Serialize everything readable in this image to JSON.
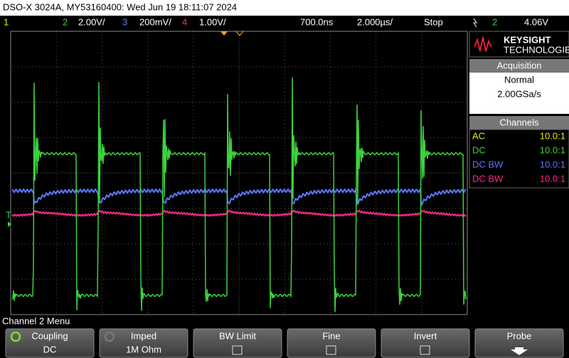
{
  "header": {
    "title": "DSO-X 3024A, MY53160400: Wed Jun 19 18:11:07 2024"
  },
  "status": {
    "ch1": "1",
    "ch2": "2",
    "ch2_scale": "2.00V/",
    "ch3": "3",
    "ch3_scale": "200mV/",
    "ch4": "4",
    "ch4_scale": "1.00V/",
    "delay": "700.0ns",
    "timebase": "2.000µs/",
    "run_state": "Stop",
    "trigger_source": "2",
    "trigger_level": "4.06V"
  },
  "markers": {
    "trigger": "T"
  },
  "brand": {
    "name": "KEYSIGHT",
    "sub": "TECHNOLOGIES"
  },
  "acquisition": {
    "title": "Acquisition",
    "mode": "Normal",
    "rate": "2.00GSa/s"
  },
  "channels": {
    "title": "Channels",
    "rows": [
      [
        "AC",
        "10.0:1"
      ],
      [
        "DC",
        "10.0:1"
      ],
      [
        "DC BW",
        "10.0:1"
      ],
      [
        "DC BW",
        "10.0:1"
      ]
    ]
  },
  "menu": {
    "title": "Channel 2 Menu",
    "softkeys": [
      {
        "label": "Coupling",
        "value": "DC"
      },
      {
        "label": "Imped",
        "value": "1M Ohm"
      },
      {
        "label": "BW Limit"
      },
      {
        "label": "Fine"
      },
      {
        "label": "Invert"
      },
      {
        "label": "Probe"
      }
    ]
  }
}
